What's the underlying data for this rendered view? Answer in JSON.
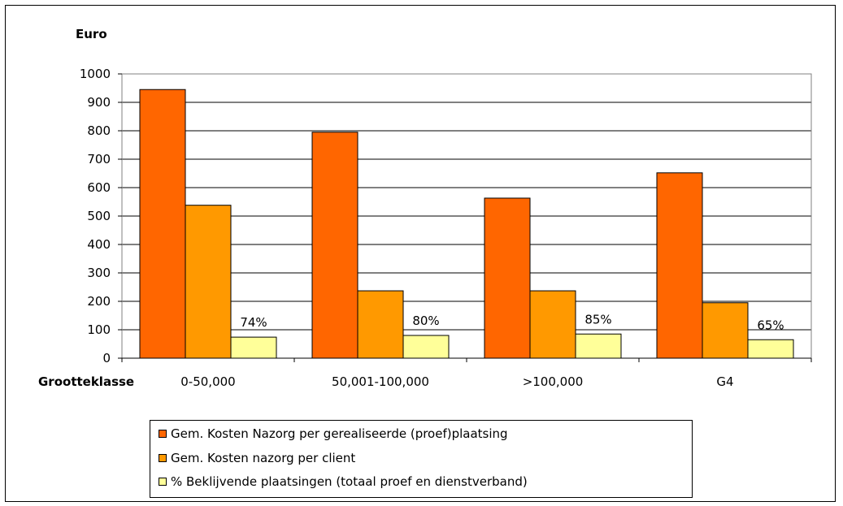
{
  "chart_data": {
    "type": "bar",
    "ylabel": "Euro",
    "xlabel": "Grootteklasse",
    "ylim": [
      0,
      1000
    ],
    "yticks": [
      0,
      100,
      200,
      300,
      400,
      500,
      600,
      700,
      800,
      900,
      1000
    ],
    "categories": [
      "0-50,000",
      "50,001-100,000",
      ">100,000",
      "G4"
    ],
    "series": [
      {
        "name": "Gem. Kosten Nazorg per gerealiseerde (proef)plaatsing",
        "color": "#ff6600",
        "values": [
          945,
          795,
          563,
          652
        ]
      },
      {
        "name": "Gem. Kosten nazorg per client",
        "color": "#ff9900",
        "values": [
          538,
          237,
          237,
          195
        ]
      },
      {
        "name": "% Beklijvende plaatsingen (totaal proef en dienstverband)",
        "color": "#ffff99",
        "values": [
          74,
          80,
          85,
          65
        ],
        "data_labels": [
          "74%",
          "80%",
          "85%",
          "65%"
        ]
      }
    ],
    "grid": true,
    "legend_position": "bottom"
  }
}
